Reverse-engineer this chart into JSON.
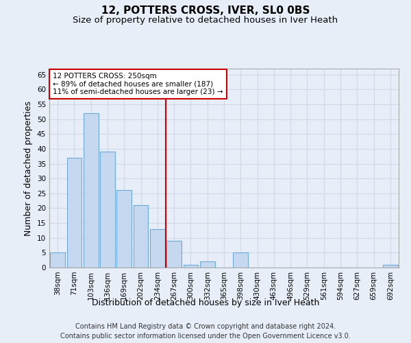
{
  "title": "12, POTTERS CROSS, IVER, SL0 0BS",
  "subtitle": "Size of property relative to detached houses in Iver Heath",
  "xlabel": "Distribution of detached houses by size in Iver Heath",
  "ylabel": "Number of detached properties",
  "categories": [
    "38sqm",
    "71sqm",
    "103sqm",
    "136sqm",
    "169sqm",
    "202sqm",
    "234sqm",
    "267sqm",
    "300sqm",
    "332sqm",
    "365sqm",
    "398sqm",
    "430sqm",
    "463sqm",
    "496sqm",
    "529sqm",
    "561sqm",
    "594sqm",
    "627sqm",
    "659sqm",
    "692sqm"
  ],
  "values": [
    5,
    37,
    52,
    39,
    26,
    21,
    13,
    9,
    1,
    2,
    0,
    5,
    0,
    0,
    0,
    0,
    0,
    0,
    0,
    0,
    1
  ],
  "bar_color": "#c5d8f0",
  "bar_edge_color": "#6aaad4",
  "grid_color": "#d0d9e8",
  "background_color": "#e8eef8",
  "property_line_x": 6.5,
  "annotation_text": "12 POTTERS CROSS: 250sqm\n← 89% of detached houses are smaller (187)\n11% of semi-detached houses are larger (23) →",
  "annotation_box_color": "#ffffff",
  "annotation_box_edge_color": "#cc0000",
  "vline_color": "#cc0000",
  "ylim": [
    0,
    67
  ],
  "yticks": [
    0,
    5,
    10,
    15,
    20,
    25,
    30,
    35,
    40,
    45,
    50,
    55,
    60,
    65
  ],
  "footer_line1": "Contains HM Land Registry data © Crown copyright and database right 2024.",
  "footer_line2": "Contains public sector information licensed under the Open Government Licence v3.0.",
  "title_fontsize": 11,
  "subtitle_fontsize": 9.5,
  "xlabel_fontsize": 9,
  "ylabel_fontsize": 9,
  "tick_fontsize": 7.5,
  "annotation_fontsize": 7.5,
  "footer_fontsize": 7
}
